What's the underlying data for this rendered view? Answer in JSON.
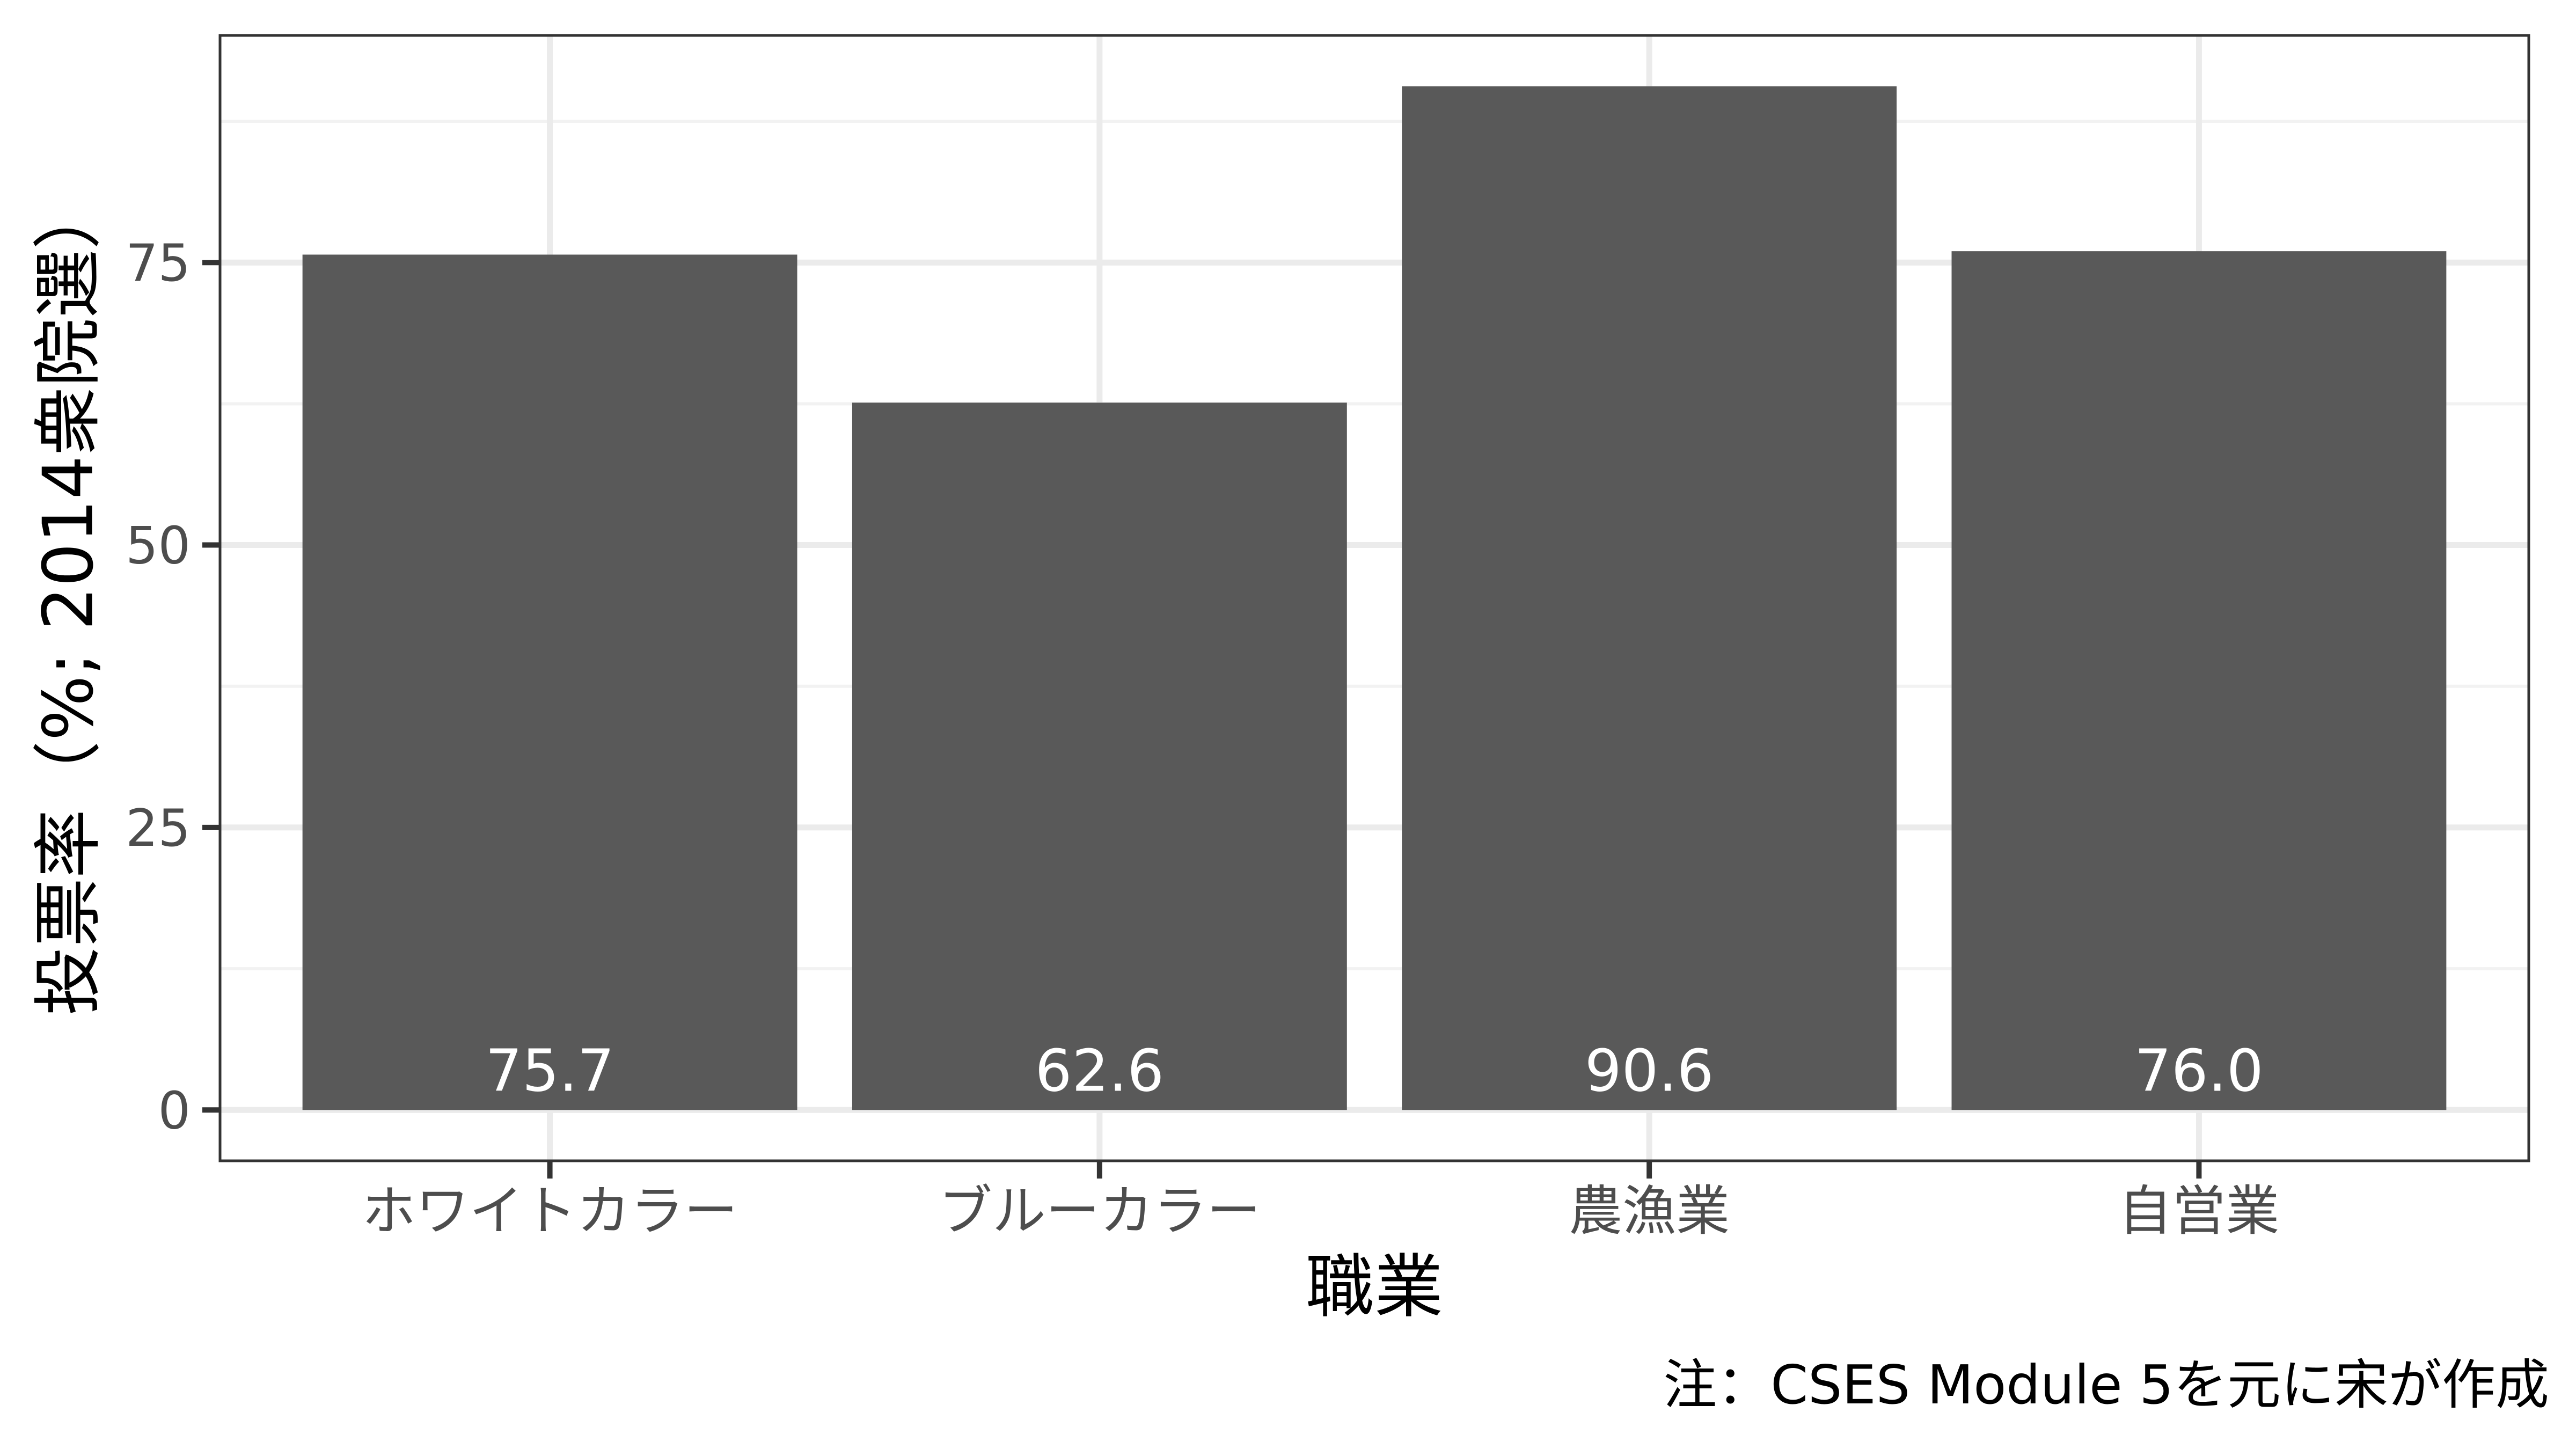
{
  "chart_data": {
    "type": "bar",
    "categories": [
      "ホワイトカラー",
      "ブルーカラー",
      "農漁業",
      "自営業"
    ],
    "values": [
      75.7,
      62.6,
      90.6,
      76.0
    ],
    "value_labels": [
      "75.7",
      "62.6",
      "90.6",
      "76.0"
    ],
    "xlabel": "職業",
    "ylabel": "投票率（%; 2014衆院選）",
    "ylim": [
      -4.5,
      95.1
    ],
    "yticks": [
      0,
      25,
      50,
      75
    ],
    "ytick_labels": [
      "0",
      "25",
      "50",
      "75"
    ],
    "grid": true,
    "caption": "注：CSES Module 5を元に宋が作成",
    "colors": {
      "bar": "#595959",
      "bar_label": "#ffffff",
      "grid_major": "#ebebeb",
      "grid_minor": "#f2f2f2",
      "panel_border": "#333333",
      "tick_label": "#4d4d4d"
    }
  }
}
